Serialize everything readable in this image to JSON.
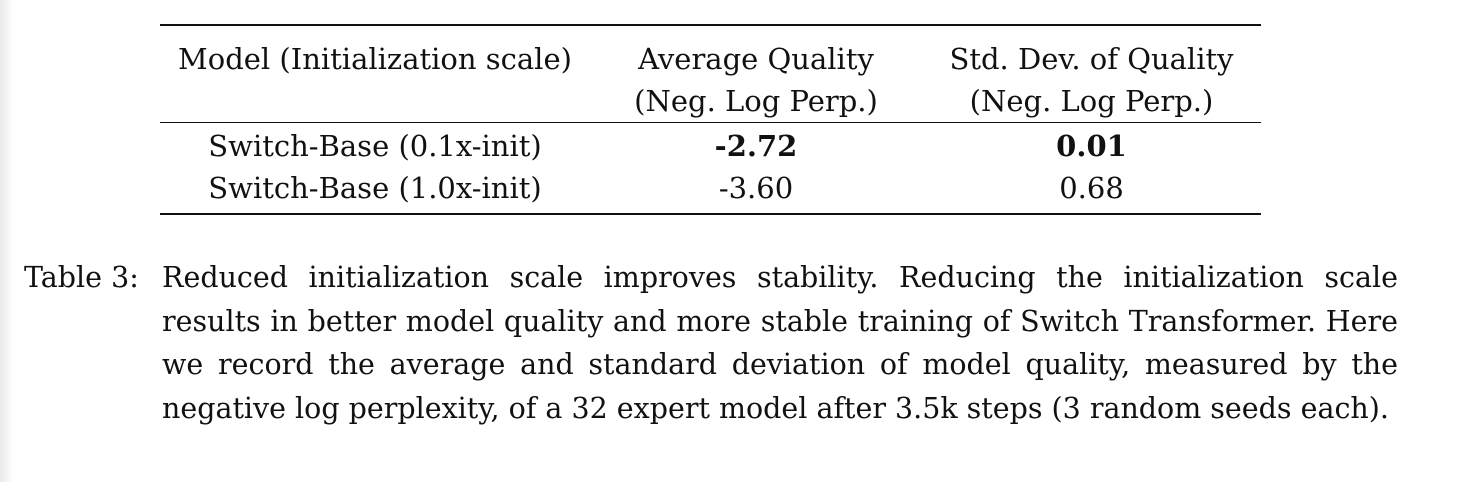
{
  "table": {
    "headers": [
      {
        "line1": "Model (Initialization scale)",
        "line2": ""
      },
      {
        "line1": "Average Quality",
        "line2": "(Neg. Log Perp.)"
      },
      {
        "line1": "Std. Dev. of Quality",
        "line2": "(Neg. Log Perp.)"
      }
    ],
    "rows": [
      {
        "model": "Switch-Base (0.1x-init)",
        "avg": "-2.72",
        "std": "0.01",
        "bold": true
      },
      {
        "model": "Switch-Base (1.0x-init)",
        "avg": "-3.60",
        "std": "0.68",
        "bold": false
      }
    ]
  },
  "caption": {
    "label": "Table 3:",
    "text": "Reduced initialization scale improves stability. Reducing the initialization scale results in better model quality and more stable training of Switch Transformer. Here we record the average and standard deviation of model quality, measured by the negative log perplexity, of a 32 expert model after 3.5k steps (3 random seeds each)."
  }
}
